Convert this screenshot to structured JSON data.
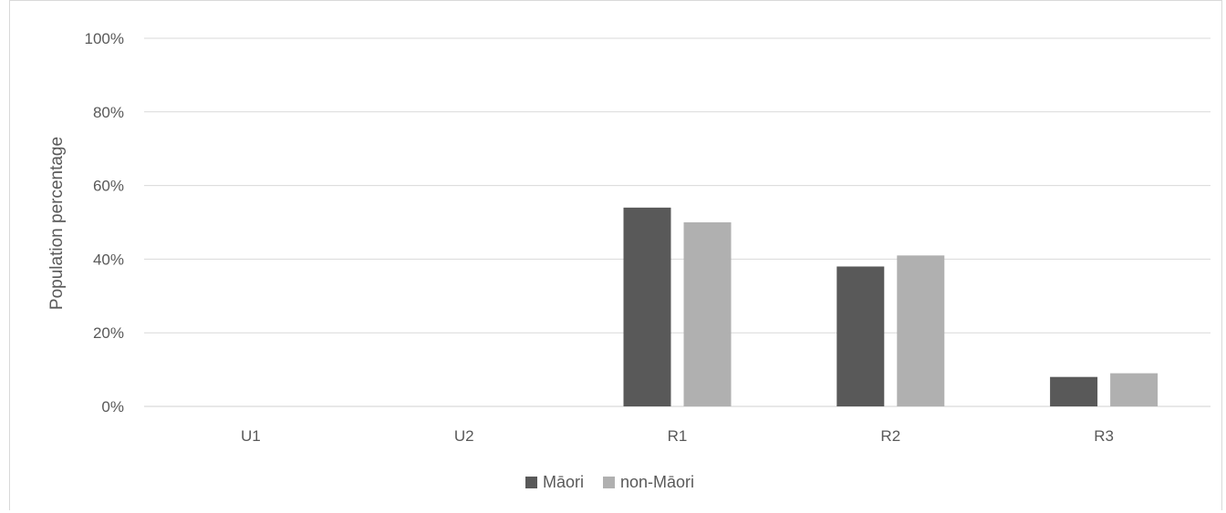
{
  "chart_data": {
    "type": "bar",
    "title": "",
    "xlabel": "",
    "ylabel": "Population percentage",
    "ylim": [
      0,
      100
    ],
    "yticks": [
      0,
      20,
      40,
      60,
      80,
      100
    ],
    "ytick_labels": [
      "0%",
      "20%",
      "40%",
      "60%",
      "80%",
      "100%"
    ],
    "categories": [
      "U1",
      "U2",
      "R1",
      "R2",
      "R3"
    ],
    "series": [
      {
        "name": "Māori",
        "color": "#595959",
        "values": [
          0,
          0,
          54,
          38,
          8
        ]
      },
      {
        "name": "non-Māori",
        "color": "#b0b0b0",
        "values": [
          0,
          0,
          50,
          41,
          9
        ]
      }
    ],
    "grid": true,
    "legend_position": "bottom"
  }
}
